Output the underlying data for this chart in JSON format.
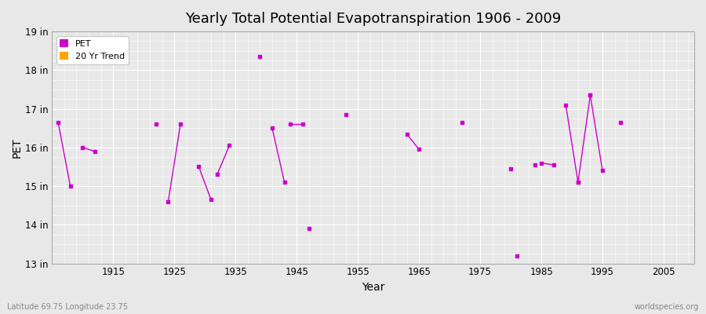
{
  "title": "Yearly Total Potential Evapotranspiration 1906 - 2009",
  "xlabel": "Year",
  "ylabel": "PET",
  "bottom_left": "Latitude 69.75 Longitude 23.75",
  "bottom_right": "worldspecies.org",
  "xlim": [
    1905,
    2010
  ],
  "ylim": [
    13,
    19
  ],
  "yticks": [
    13,
    14,
    15,
    16,
    17,
    18,
    19
  ],
  "ytick_labels": [
    "13 in",
    "14 in",
    "15 in",
    "16 in",
    "17 in",
    "18 in",
    "19 in"
  ],
  "xticks": [
    1915,
    1925,
    1935,
    1945,
    1955,
    1965,
    1975,
    1985,
    1995,
    2005
  ],
  "background_color": "#e8e8e8",
  "plot_bg_color": "#e8e8e8",
  "grid_color": "#ffffff",
  "pet_color": "#cc00cc",
  "trend_color": "#ffa500",
  "isolated_points": [
    [
      1922,
      16.6
    ],
    [
      1939,
      18.35
    ],
    [
      1947,
      13.9
    ],
    [
      1953,
      16.85
    ],
    [
      1972,
      16.65
    ],
    [
      1980,
      15.45
    ],
    [
      1981,
      13.2
    ],
    [
      1984,
      15.55
    ],
    [
      1998,
      16.65
    ]
  ],
  "line_segments": [
    [
      [
        1906,
        16.65
      ],
      [
        1908,
        15.0
      ]
    ],
    [
      [
        1910,
        16.0
      ],
      [
        1912,
        15.9
      ]
    ],
    [
      [
        1924,
        14.6
      ],
      [
        1926,
        16.6
      ]
    ],
    [
      [
        1929,
        15.5
      ],
      [
        1931,
        14.65
      ]
    ],
    [
      [
        1932,
        15.3
      ],
      [
        1934,
        16.05
      ]
    ],
    [
      [
        1941,
        16.5
      ],
      [
        1943,
        15.1
      ]
    ],
    [
      [
        1944,
        16.6
      ],
      [
        1946,
        16.6
      ]
    ],
    [
      [
        1963,
        16.35
      ],
      [
        1965,
        15.95
      ]
    ],
    [
      [
        1985,
        15.6
      ],
      [
        1987,
        15.55
      ]
    ],
    [
      [
        1989,
        17.1
      ],
      [
        1991,
        15.1
      ]
    ],
    [
      [
        1991,
        15.1
      ],
      [
        1993,
        17.35
      ]
    ],
    [
      [
        1993,
        17.35
      ],
      [
        1995,
        15.4
      ]
    ]
  ]
}
